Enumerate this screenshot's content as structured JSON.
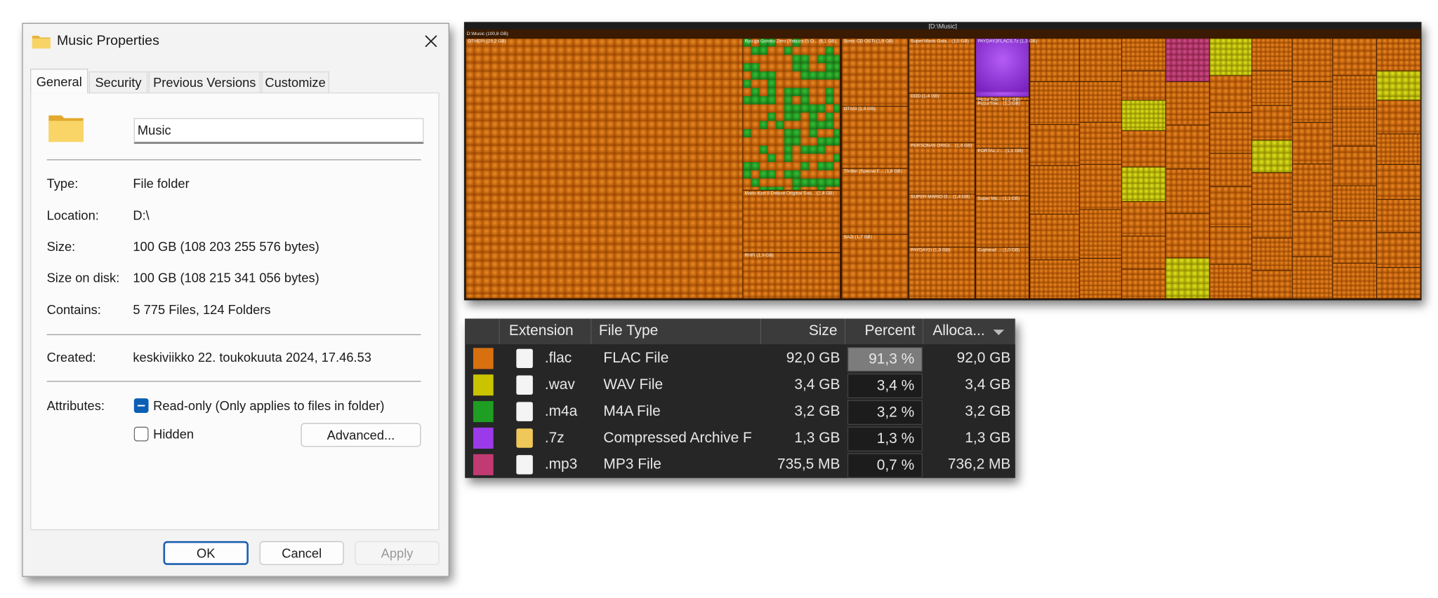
{
  "dialog": {
    "title": "Music Properties",
    "tabs": [
      "General",
      "Security",
      "Previous Versions",
      "Customize"
    ],
    "name": "Music",
    "fields": [
      {
        "label": "Type:",
        "value": "File folder"
      },
      {
        "label": "Location:",
        "value": "D:\\"
      },
      {
        "label": "Size:",
        "value": "100 GB (108 203 255 576 bytes)"
      },
      {
        "label": "Size on disk:",
        "value": "100 GB (108 215 341 056 bytes)"
      },
      {
        "label": "Contains:",
        "value": "5 775 Files, 124 Folders"
      }
    ],
    "created": {
      "label": "Created:",
      "value": "keskiviikko 22. toukokuuta 2024, 17.46.53"
    },
    "attributes": {
      "label": "Attributes:",
      "readonly": "Read-only (Only applies to files in folder)",
      "hidden": "Hidden",
      "advanced": "Advanced..."
    },
    "buttons": {
      "ok": "OK",
      "cancel": "Cancel",
      "apply": "Apply"
    }
  },
  "treemap": {
    "title": "[D:\\Music]",
    "labels": [
      "D:\\Music (100,8 GB)",
      "OTHER\\ (29,2 GB)",
      "Ryu ga Gotoku Zero (Yakuza 0) O... (6,1 GB)",
      "Mario Kart 8 Deluxe Original Sou... (2,4 GB)",
      "RHFi (1,9 GB)",
      "Sonic CD OST\\ (1,9 GB)",
      "OTASi (1,8 GB)",
      "Thriller (Special E... (1,8 GB)",
      "SAZi (1,7 GB)",
      "Super Mario Gala... (1,5 GB)",
      "DDD (1,4 GB)",
      "PERSONA5 ORIGI... (1,4 GB)",
      "SUPER MARIO O... (1,4 GB)",
      "PAYDAY2i (1,3 GB)",
      "PAYDAY2FLACS.7z (1,3 GB)",
      "Pizza Tow... (1,2 GB)",
      "Pizza Tow... (1,2 GB)",
      "PORTAL 2 ... (1,1 GB)",
      "Super Mo... (1,1 GB)",
      "Cuphead ... (1,0 GB)"
    ]
  },
  "table": {
    "headers": [
      "Extension",
      "File Type",
      "Size",
      "Percent",
      "Alloca..."
    ],
    "rows": [
      {
        "color": "#d8700f",
        "extension": ".flac",
        "file_type": "FLAC File",
        "size": "92,0 GB",
        "percent": "91,3 %",
        "allocated": "92,0 GB"
      },
      {
        "color": "#c9c300",
        "extension": ".wav",
        "file_type": "WAV File",
        "size": "3,4 GB",
        "percent": "3,4 %",
        "allocated": "3,4 GB"
      },
      {
        "color": "#1e9e22",
        "extension": ".m4a",
        "file_type": "M4A File",
        "size": "3,2 GB",
        "percent": "3,2 %",
        "allocated": "3,2 GB"
      },
      {
        "color": "#9b3ae8",
        "extension": ".7z",
        "file_type": "Compressed Archive F",
        "size": "1,3 GB",
        "percent": "1,3 %",
        "allocated": "1,3 GB"
      },
      {
        "color": "#c23a72",
        "extension": ".mp3",
        "file_type": "MP3 File",
        "size": "735,5 MB",
        "percent": "0,7 %",
        "allocated": "736,2 MB"
      }
    ]
  }
}
